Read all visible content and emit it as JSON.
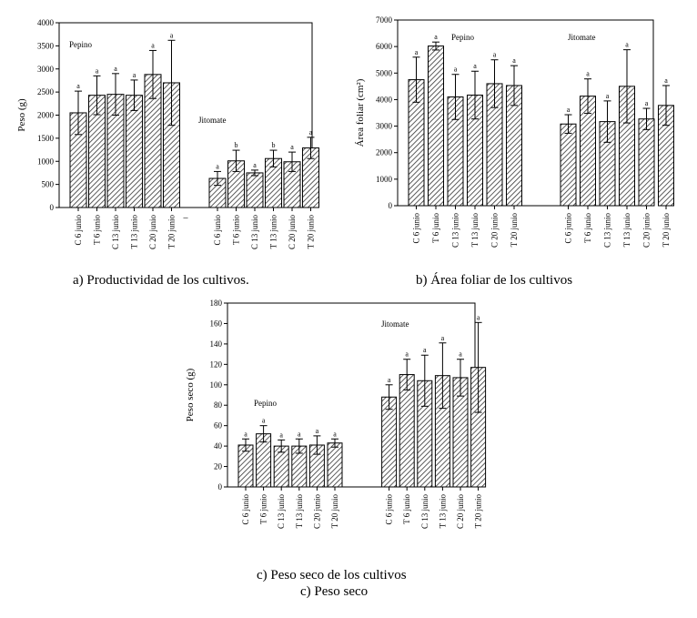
{
  "chart_data": [
    {
      "id": "a",
      "type": "bar",
      "ylabel": "Peso (g)",
      "ylim": [
        0,
        4000
      ],
      "yticks": [
        0,
        500,
        1000,
        1500,
        2000,
        2500,
        3000,
        3500,
        4000
      ],
      "groups": [
        {
          "name": "Pepino",
          "categories": [
            "C 6 junio",
            "T 6 junio",
            "C 13 junio",
            "T 13 junio",
            "C 20 junio",
            "T 20 junio"
          ],
          "values": [
            2050,
            2430,
            2450,
            2430,
            2880,
            2700
          ],
          "errors": [
            470,
            420,
            450,
            330,
            520,
            920
          ],
          "letters": [
            "a",
            "a",
            "a",
            "a",
            "a",
            "a"
          ]
        },
        {
          "name": "Jitomate",
          "categories": [
            "C 6 junio",
            "T 6 junio",
            "C 13 junio",
            "T 13 junio",
            "C 20 junio",
            "T 20 junio"
          ],
          "values": [
            630,
            1010,
            750,
            1060,
            990,
            1290
          ],
          "errors": [
            150,
            230,
            60,
            180,
            210,
            230
          ],
          "letters": [
            "a",
            "b",
            "a",
            "b",
            "a",
            "a"
          ]
        }
      ],
      "separator_label": "–",
      "caption": "a) Productividad de los cultivos."
    },
    {
      "id": "b",
      "type": "bar",
      "ylabel": "Área foliar (cm²)",
      "ylim": [
        0,
        7000
      ],
      "yticks": [
        0,
        1000,
        2000,
        3000,
        4000,
        5000,
        6000,
        7000
      ],
      "groups": [
        {
          "name": "Pepino",
          "categories": [
            "C 6 junio",
            "T 6 junio",
            "C 13 junio",
            "T 13 junio",
            "C 20 junio",
            "T 20 junio"
          ],
          "values": [
            4750,
            6020,
            4100,
            4170,
            4600,
            4530
          ],
          "errors": [
            850,
            150,
            850,
            900,
            900,
            750
          ],
          "letters": [
            "a",
            "a",
            "a",
            "a",
            "a",
            "a"
          ]
        },
        {
          "name": "Jitomate",
          "categories": [
            "C 6 junio",
            "T 6 junio",
            "C 13 junio",
            "T 13 junio",
            "C 20 junio",
            "T 20 junio"
          ],
          "values": [
            3080,
            4130,
            3170,
            4500,
            3270,
            3780
          ],
          "errors": [
            350,
            650,
            780,
            1380,
            400,
            750
          ],
          "letters": [
            "a",
            "a",
            "a",
            "a",
            "a",
            "a"
          ]
        }
      ],
      "caption": "b) Área foliar de los cultivos"
    },
    {
      "id": "c",
      "type": "bar",
      "ylabel": "Peso seco (g)",
      "ylim": [
        0,
        180
      ],
      "yticks": [
        0,
        20,
        40,
        60,
        80,
        100,
        120,
        140,
        160,
        180
      ],
      "groups": [
        {
          "name": "Pepino",
          "categories": [
            "C 6 junio",
            "T 6 junio",
            "C 13 junio",
            "T 13 junio",
            "C 20 junio",
            "T 20 junio"
          ],
          "values": [
            41,
            52,
            40,
            40,
            41,
            43
          ],
          "errors": [
            6,
            8,
            6,
            7,
            9,
            4
          ],
          "letters": [
            "a",
            "a",
            "a",
            "a",
            "a",
            "a"
          ]
        },
        {
          "name": "Jitomate",
          "categories": [
            "C 6 junio",
            "T 6 junio",
            "C 13 junio",
            "T 13 junio",
            "C 20 junio",
            "T 20 junio"
          ],
          "values": [
            88,
            110,
            104,
            109,
            107,
            117
          ],
          "errors": [
            12,
            15,
            25,
            32,
            18,
            44
          ],
          "letters": [
            "a",
            "a",
            "a",
            "a",
            "a",
            "a"
          ]
        }
      ],
      "caption": "c) Peso seco de los cultivos",
      "caption2": "c) Peso seco"
    }
  ]
}
